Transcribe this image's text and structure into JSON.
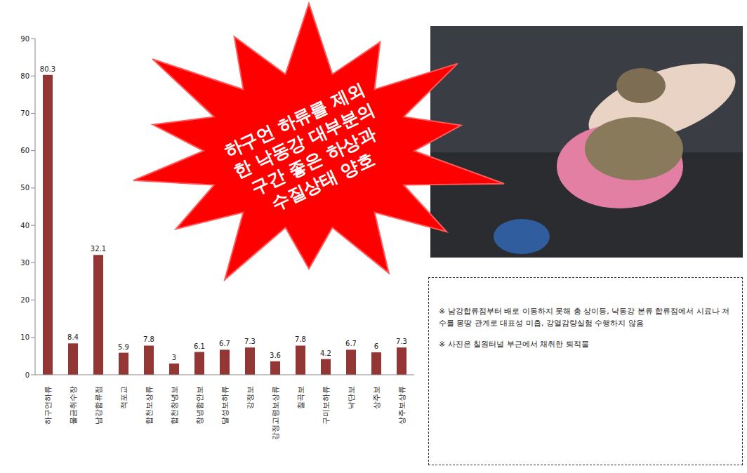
{
  "chart_data": {
    "type": "bar",
    "categories": [
      "하구언하류",
      "물금취수장",
      "남강합류점",
      "적포교",
      "합천보상류",
      "합천창녕보",
      "창녕함안보",
      "달성보하류",
      "강정보",
      "강정고령보상류",
      "칠곡보",
      "구미보하류",
      "낙단보",
      "상주보",
      "상주보상류"
    ],
    "values": [
      80.3,
      8.4,
      32.1,
      5.9,
      7.8,
      3,
      6.1,
      6.7,
      7.3,
      3.6,
      7.8,
      4.2,
      6.7,
      6,
      7.3
    ],
    "color": "#943634",
    "ylim": [
      0,
      90
    ],
    "yticks": [
      0,
      10,
      20,
      30,
      40,
      50,
      60,
      70,
      80,
      90
    ],
    "grid": false,
    "data_labels": true,
    "annotations": [
      "하구언 하류를 제외",
      "한 낙동강 대부분의",
      "구간 좋은 하상과",
      "수질상태 양호"
    ]
  },
  "text_box": {
    "lines": [
      "※ 남강합류점부터 배로 이동하지 못해 총 상이등, 낙동강 본류 합류점에서 시료나 저수를 몽땅 관계로 대표성 미흡, 강열감량실험 수행하지 않음",
      "※ 사진은 칠원터널 부근에서 채취한 퇴적물"
    ]
  }
}
